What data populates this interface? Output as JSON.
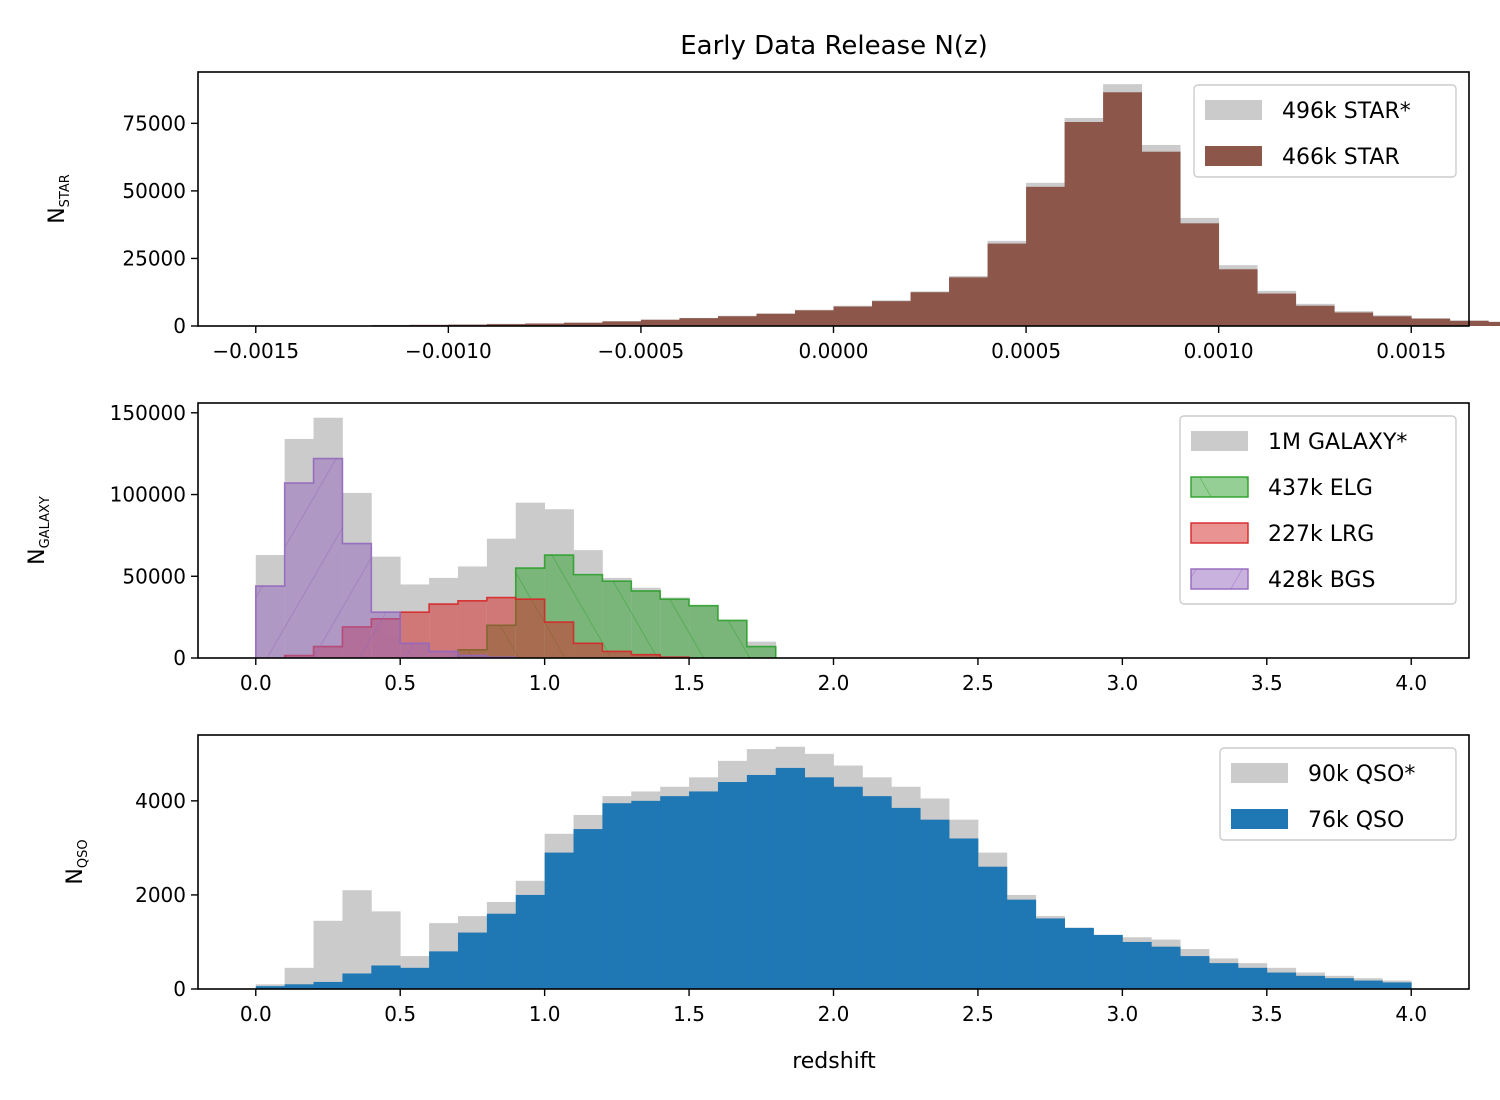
{
  "figure_title": "Early Data Release N(z)",
  "xlabel": "redshift",
  "colors": {
    "all": "#cbcbcb",
    "star": "#8c564b",
    "qso": "#1f77b4",
    "elg": "#2ca02c",
    "lrg": "#d62728",
    "bgs": "#9467bd"
  },
  "chart_data": [
    {
      "type": "bar",
      "panel": "star",
      "ylabel_main": "N",
      "ylabel_sub": "STAR",
      "bin_start": -0.0015,
      "bin_width": 0.0001,
      "xlim": [
        -0.00165,
        0.00165
      ],
      "ylim": [
        0,
        94000
      ],
      "xticks": [
        -0.0015,
        -0.001,
        -0.0005,
        0.0,
        0.0005,
        0.001,
        0.0015
      ],
      "xtick_labels": [
        "−0.0015",
        "−0.0010",
        "−0.0005",
        "0.0000",
        "0.0005",
        "0.0010",
        "0.0015"
      ],
      "yticks": [
        0,
        25000,
        50000,
        75000
      ],
      "ytick_labels": [
        "0",
        "25000",
        "50000",
        "75000"
      ],
      "legend_position": "upper-right",
      "series": [
        {
          "name": "496k STAR*",
          "style": "all",
          "values": [
            60,
            100,
            200,
            400,
            500,
            600,
            800,
            1000,
            1300,
            1800,
            2400,
            3000,
            3800,
            4700,
            6000,
            7500,
            9500,
            12800,
            18500,
            31500,
            53000,
            77000,
            89500,
            67000,
            40000,
            22500,
            13000,
            8200,
            5500,
            4000,
            2900,
            2100,
            1600,
            1100,
            800,
            600,
            400,
            200,
            100,
            60
          ]
        },
        {
          "name": "466k STAR",
          "style": "star",
          "values": [
            50,
            80,
            150,
            300,
            400,
            500,
            700,
            900,
            1200,
            1700,
            2300,
            2900,
            3600,
            4500,
            5800,
            7200,
            9200,
            12500,
            18000,
            30500,
            51500,
            75500,
            86500,
            64500,
            38000,
            21000,
            12000,
            7500,
            5000,
            3600,
            2700,
            1900,
            1500,
            1000,
            700,
            500,
            300,
            150,
            80,
            50
          ]
        }
      ]
    },
    {
      "type": "bar",
      "panel": "galaxy",
      "ylabel_main": "N",
      "ylabel_sub": "GALAXY",
      "bin_start": 0.0,
      "bin_width": 0.1,
      "xlim": [
        -0.2,
        4.2
      ],
      "ylim": [
        0,
        156000
      ],
      "xticks": [
        0.0,
        0.5,
        1.0,
        1.5,
        2.0,
        2.5,
        3.0,
        3.5,
        4.0
      ],
      "xtick_labels": [
        "0.0",
        "0.5",
        "1.0",
        "1.5",
        "2.0",
        "2.5",
        "3.0",
        "3.5",
        "4.0"
      ],
      "yticks": [
        0,
        50000,
        100000,
        150000
      ],
      "ytick_labels": [
        "0",
        "50000",
        "100000",
        "150000"
      ],
      "legend_position": "upper-right",
      "series": [
        {
          "name": "1M GALAXY*",
          "style": "all",
          "values": [
            63000,
            134000,
            147000,
            101000,
            62000,
            45000,
            49000,
            56000,
            73000,
            95000,
            91000,
            66000,
            49000,
            43000,
            37000,
            32000,
            23000,
            10000
          ]
        },
        {
          "name": "437k ELG",
          "style": "elg",
          "values": [
            0,
            0,
            0,
            0,
            0,
            0,
            0,
            5000,
            20000,
            55000,
            63000,
            51000,
            47000,
            41000,
            36000,
            32000,
            23000,
            7000
          ]
        },
        {
          "name": "227k LRG",
          "style": "lrg",
          "values": [
            0,
            1500,
            7000,
            19000,
            24000,
            28000,
            33000,
            35000,
            37000,
            36000,
            22000,
            9000,
            4000,
            2000,
            500,
            0,
            0,
            0
          ]
        },
        {
          "name": "428k BGS",
          "style": "bgs",
          "values": [
            44000,
            107000,
            122000,
            70000,
            28000,
            9000,
            4000,
            1500,
            500,
            0,
            0,
            0,
            0,
            0,
            0,
            0,
            0,
            0
          ]
        }
      ]
    },
    {
      "type": "bar",
      "panel": "qso",
      "ylabel_main": "N",
      "ylabel_sub": "QSO",
      "bin_start": 0.0,
      "bin_width": 0.1,
      "xlim": [
        -0.2,
        4.2
      ],
      "ylim": [
        0,
        5400
      ],
      "xticks": [
        0.0,
        0.5,
        1.0,
        1.5,
        2.0,
        2.5,
        3.0,
        3.5,
        4.0
      ],
      "xtick_labels": [
        "0.0",
        "0.5",
        "1.0",
        "1.5",
        "2.0",
        "2.5",
        "3.0",
        "3.5",
        "4.0"
      ],
      "yticks": [
        0,
        2000,
        4000
      ],
      "ytick_labels": [
        "0",
        "2000",
        "4000"
      ],
      "legend_position": "upper-right",
      "series": [
        {
          "name": "90k QSO*",
          "style": "all",
          "values": [
            100,
            450,
            1450,
            2100,
            1650,
            700,
            1400,
            1550,
            1850,
            2300,
            3300,
            3700,
            4100,
            4200,
            4300,
            4500,
            4850,
            5100,
            5150,
            5000,
            4750,
            4500,
            4300,
            4050,
            3600,
            2900,
            2000,
            1550,
            1300,
            1150,
            1100,
            1050,
            850,
            650,
            550,
            450,
            350,
            280,
            230,
            180
          ]
        },
        {
          "name": "76k QSO",
          "style": "qso",
          "values": [
            60,
            100,
            150,
            330,
            500,
            450,
            800,
            1200,
            1600,
            2000,
            2900,
            3400,
            3950,
            4000,
            4100,
            4200,
            4400,
            4550,
            4700,
            4500,
            4300,
            4100,
            3850,
            3600,
            3200,
            2600,
            1900,
            1500,
            1300,
            1150,
            1000,
            900,
            700,
            550,
            450,
            350,
            280,
            230,
            180,
            140
          ]
        }
      ]
    }
  ]
}
